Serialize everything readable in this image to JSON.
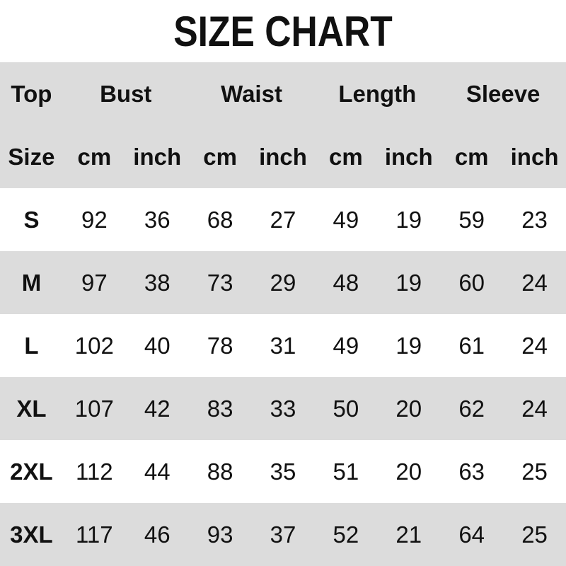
{
  "title": "SIZE CHART",
  "header_top": {
    "first": "Top",
    "groups": [
      "Bust",
      "Waist",
      "Length",
      "Sleeve"
    ]
  },
  "header_sub": {
    "first": "Size",
    "units": [
      "cm",
      "inch",
      "cm",
      "inch",
      "cm",
      "inch",
      "cm",
      "inch"
    ]
  },
  "rows": [
    {
      "size": "S",
      "values": [
        "92",
        "36",
        "68",
        "27",
        "49",
        "19",
        "59",
        "23"
      ]
    },
    {
      "size": "M",
      "values": [
        "97",
        "38",
        "73",
        "29",
        "48",
        "19",
        "60",
        "24"
      ]
    },
    {
      "size": "L",
      "values": [
        "102",
        "40",
        "78",
        "31",
        "49",
        "19",
        "61",
        "24"
      ]
    },
    {
      "size": "XL",
      "values": [
        "107",
        "42",
        "83",
        "33",
        "50",
        "20",
        "62",
        "24"
      ]
    },
    {
      "size": "2XL",
      "values": [
        "112",
        "44",
        "88",
        "35",
        "51",
        "20",
        "63",
        "25"
      ]
    },
    {
      "size": "3XL",
      "values": [
        "117",
        "46",
        "93",
        "37",
        "52",
        "21",
        "64",
        "25"
      ]
    }
  ],
  "colors": {
    "stripe": "#dcdcdc",
    "text": "#111111"
  }
}
